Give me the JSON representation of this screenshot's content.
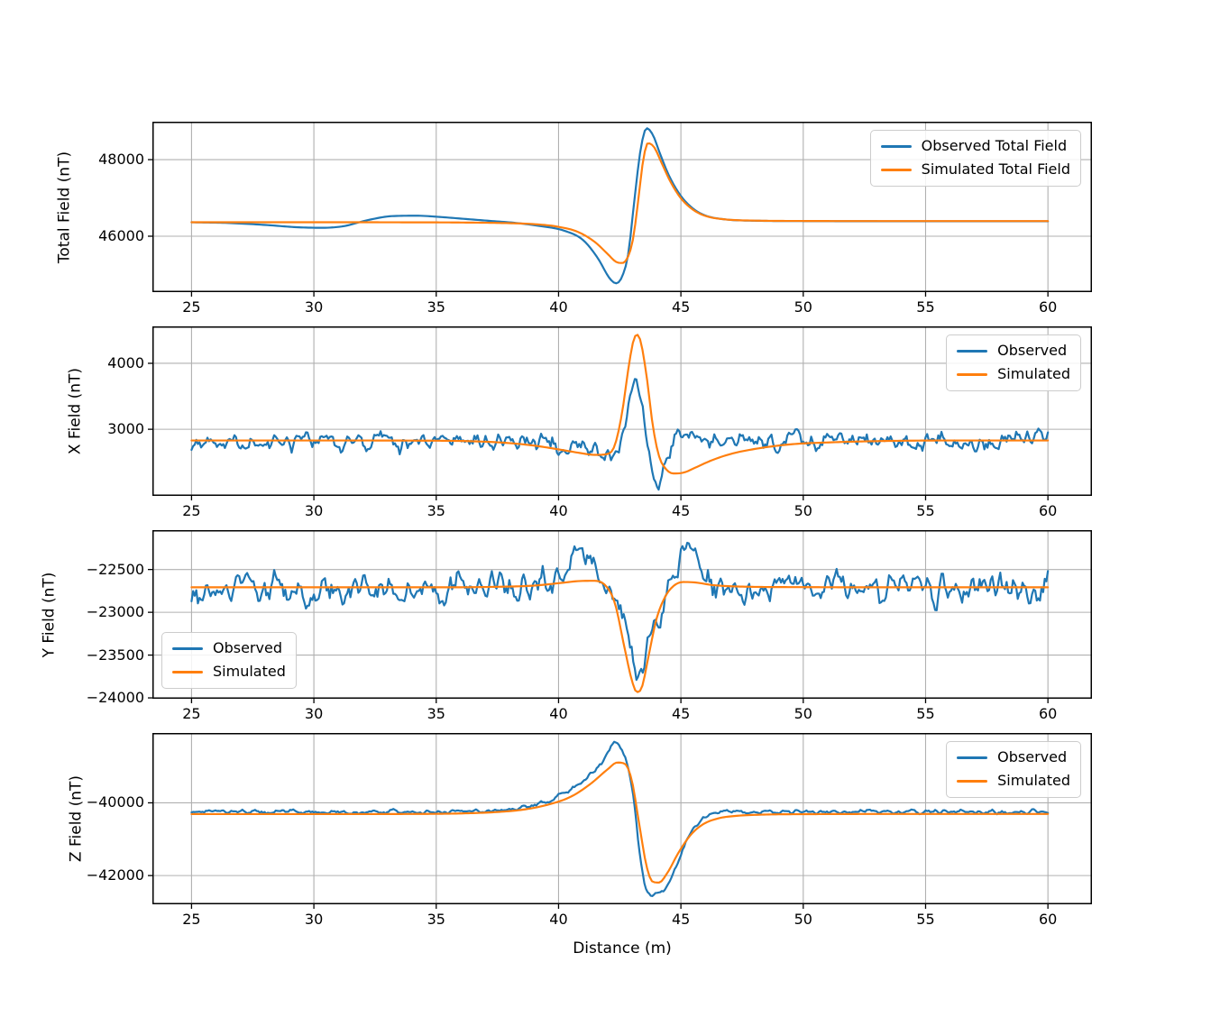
{
  "figure": {
    "xlabel": "Distance (m)",
    "background": "#ffffff",
    "text_color": "#000000",
    "grid_color": "#b0b0b0",
    "spine_color": "#000000",
    "observed_color": "#1f77b4",
    "simulated_color": "#ff7f0e"
  },
  "chart_data": [
    {
      "type": "line",
      "title": "",
      "ylabel": "Total Field (nT)",
      "xlabel": "",
      "x_ticks": [
        25,
        30,
        35,
        40,
        45,
        50,
        55,
        60
      ],
      "y_ticks": [
        46000,
        48000
      ],
      "xlim": [
        23.4,
        61.8
      ],
      "ylim": [
        44540,
        48990
      ],
      "x_data_range": [
        25,
        60
      ],
      "grid": true,
      "legend": {
        "position": "top-right",
        "entries": [
          "Observed Total Field",
          "Simulated Total Field"
        ]
      },
      "series": [
        {
          "name": "Observed Total Field",
          "color": "#1f77b4",
          "noise_amp": 0,
          "seed": 3,
          "keypoints": [
            [
              25,
              46365
            ],
            [
              26.5,
              46345
            ],
            [
              28,
              46295
            ],
            [
              29.3,
              46235
            ],
            [
              30.3,
              46220
            ],
            [
              31.2,
              46260
            ],
            [
              32.2,
              46420
            ],
            [
              33.2,
              46525
            ],
            [
              34.2,
              46535
            ],
            [
              35.2,
              46500
            ],
            [
              36.2,
              46450
            ],
            [
              37.2,
              46400
            ],
            [
              38.2,
              46350
            ],
            [
              39.2,
              46270
            ],
            [
              40.2,
              46150
            ],
            [
              41,
              45900
            ],
            [
              41.6,
              45430
            ],
            [
              42.1,
              44890
            ],
            [
              42.35,
              44770
            ],
            [
              42.6,
              44950
            ],
            [
              42.85,
              45550
            ],
            [
              43.1,
              46950
            ],
            [
              43.35,
              48250
            ],
            [
              43.6,
              48820
            ],
            [
              43.85,
              48650
            ],
            [
              44.15,
              48150
            ],
            [
              44.5,
              47600
            ],
            [
              45,
              47050
            ],
            [
              45.5,
              46720
            ],
            [
              46,
              46540
            ],
            [
              46.8,
              46440
            ],
            [
              48,
              46405
            ],
            [
              50,
              46395
            ],
            [
              54,
              46390
            ],
            [
              60,
              46390
            ]
          ]
        },
        {
          "name": "Simulated Total Field",
          "color": "#ff7f0e",
          "noise_amp": 0,
          "seed": 4,
          "keypoints": [
            [
              25,
              46365
            ],
            [
              28,
              46365
            ],
            [
              31,
              46365
            ],
            [
              34,
              46362
            ],
            [
              36,
              46358
            ],
            [
              38,
              46340
            ],
            [
              39,
              46315
            ],
            [
              40,
              46245
            ],
            [
              40.8,
              46110
            ],
            [
              41.5,
              45840
            ],
            [
              42,
              45540
            ],
            [
              42.35,
              45330
            ],
            [
              42.6,
              45300
            ],
            [
              42.85,
              45480
            ],
            [
              43.05,
              45950
            ],
            [
              43.25,
              46900
            ],
            [
              43.45,
              47950
            ],
            [
              43.65,
              48430
            ],
            [
              43.9,
              48330
            ],
            [
              44.2,
              47930
            ],
            [
              44.55,
              47450
            ],
            [
              45,
              46990
            ],
            [
              45.5,
              46690
            ],
            [
              46,
              46530
            ],
            [
              46.8,
              46440
            ],
            [
              48,
              46408
            ],
            [
              50,
              46398
            ],
            [
              54,
              46395
            ],
            [
              60,
              46395
            ]
          ]
        }
      ]
    },
    {
      "type": "line",
      "title": "",
      "ylabel": "X Field (nT)",
      "xlabel": "",
      "x_ticks": [
        25,
        30,
        35,
        40,
        45,
        50,
        55,
        60
      ],
      "y_ticks": [
        3000,
        4000
      ],
      "xlim": [
        23.4,
        61.8
      ],
      "ylim": [
        1990,
        4560
      ],
      "x_data_range": [
        25,
        60
      ],
      "grid": true,
      "legend": {
        "position": "top-right",
        "entries": [
          "Observed",
          "Simulated"
        ]
      },
      "series": [
        {
          "name": "Observed",
          "color": "#1f77b4",
          "noise_amp": 125,
          "seed": 7,
          "keypoints": [
            [
              25,
              2820
            ],
            [
              30,
              2820
            ],
            [
              36,
              2818
            ],
            [
              38,
              2808
            ],
            [
              39.5,
              2778
            ],
            [
              40.5,
              2720
            ],
            [
              41.3,
              2652
            ],
            [
              41.9,
              2612
            ],
            [
              42.3,
              2685
            ],
            [
              42.7,
              3005
            ],
            [
              43,
              3640
            ],
            [
              43.15,
              3728
            ],
            [
              43.35,
              3450
            ],
            [
              43.6,
              2905
            ],
            [
              43.85,
              2255
            ],
            [
              44.05,
              2152
            ],
            [
              44.3,
              2400
            ],
            [
              44.7,
              2800
            ],
            [
              45.1,
              2948
            ],
            [
              45.6,
              2852
            ],
            [
              46.5,
              2822
            ],
            [
              50,
              2820
            ],
            [
              55,
              2820
            ],
            [
              60,
              2820
            ]
          ]
        },
        {
          "name": "Simulated",
          "color": "#ff7f0e",
          "noise_amp": 0,
          "seed": 8,
          "keypoints": [
            [
              25,
              2830
            ],
            [
              30,
              2830
            ],
            [
              34,
              2828
            ],
            [
              36.5,
              2818
            ],
            [
              38,
              2790
            ],
            [
              39,
              2752
            ],
            [
              40,
              2695
            ],
            [
              40.8,
              2645
            ],
            [
              41.5,
              2612
            ],
            [
              42,
              2625
            ],
            [
              42.3,
              2760
            ],
            [
              42.6,
              3260
            ],
            [
              42.85,
              3910
            ],
            [
              43.05,
              4330
            ],
            [
              43.2,
              4435
            ],
            [
              43.35,
              4340
            ],
            [
              43.6,
              3800
            ],
            [
              43.85,
              3060
            ],
            [
              44.1,
              2600
            ],
            [
              44.4,
              2392
            ],
            [
              44.7,
              2330
            ],
            [
              45.1,
              2342
            ],
            [
              45.6,
              2420
            ],
            [
              46.2,
              2520
            ],
            [
              47,
              2622
            ],
            [
              48,
              2700
            ],
            [
              49.5,
              2772
            ],
            [
              51,
              2800
            ],
            [
              53,
              2820
            ],
            [
              56,
              2830
            ],
            [
              60,
              2830
            ]
          ]
        }
      ]
    },
    {
      "type": "line",
      "title": "",
      "ylabel": "Y Field (nT)",
      "xlabel": "",
      "x_ticks": [
        25,
        30,
        35,
        40,
        45,
        50,
        55,
        60
      ],
      "y_ticks": [
        -24000,
        -23500,
        -23000,
        -22500
      ],
      "xlim": [
        23.4,
        61.8
      ],
      "ylim": [
        -24010,
        -22040
      ],
      "x_data_range": [
        25,
        60
      ],
      "grid": true,
      "legend": {
        "position": "bottom-left",
        "entries": [
          "Observed",
          "Simulated"
        ]
      },
      "series": [
        {
          "name": "Observed",
          "color": "#1f77b4",
          "noise_amp": 150,
          "seed": 11,
          "keypoints": [
            [
              25,
              -22720
            ],
            [
              30,
              -22720
            ],
            [
              36,
              -22718
            ],
            [
              38.5,
              -22700
            ],
            [
              39.5,
              -22642
            ],
            [
              40.3,
              -22482
            ],
            [
              40.9,
              -22302
            ],
            [
              41.3,
              -22352
            ],
            [
              41.8,
              -22552
            ],
            [
              42.3,
              -22852
            ],
            [
              42.8,
              -23252
            ],
            [
              43.3,
              -23682
            ],
            [
              43.7,
              -23452
            ],
            [
              44.2,
              -22952
            ],
            [
              44.7,
              -22552
            ],
            [
              45.2,
              -22352
            ],
            [
              45.6,
              -22402
            ],
            [
              46.1,
              -22652
            ],
            [
              46.6,
              -22742
            ],
            [
              48,
              -22722
            ],
            [
              52,
              -22720
            ],
            [
              56,
              -22720
            ],
            [
              60,
              -22720
            ]
          ]
        },
        {
          "name": "Simulated",
          "color": "#ff7f0e",
          "noise_amp": 0,
          "seed": 12,
          "keypoints": [
            [
              25,
              -22708
            ],
            [
              30,
              -22708
            ],
            [
              35,
              -22708
            ],
            [
              37.5,
              -22702
            ],
            [
              39,
              -22688
            ],
            [
              40,
              -22660
            ],
            [
              40.8,
              -22636
            ],
            [
              41.4,
              -22632
            ],
            [
              41.9,
              -22682
            ],
            [
              42.3,
              -22892
            ],
            [
              42.7,
              -23420
            ],
            [
              43,
              -23800
            ],
            [
              43.2,
              -23932
            ],
            [
              43.4,
              -23880
            ],
            [
              43.7,
              -23480
            ],
            [
              44,
              -23080
            ],
            [
              44.35,
              -22822
            ],
            [
              44.7,
              -22692
            ],
            [
              45.1,
              -22646
            ],
            [
              45.6,
              -22652
            ],
            [
              46.3,
              -22682
            ],
            [
              47.5,
              -22700
            ],
            [
              50,
              -22706
            ],
            [
              55,
              -22708
            ],
            [
              60,
              -22708
            ]
          ]
        }
      ]
    },
    {
      "type": "line",
      "title": "",
      "ylabel": "Z Field (nT)",
      "xlabel": "Distance (m)",
      "x_ticks": [
        25,
        30,
        35,
        40,
        45,
        50,
        55,
        60
      ],
      "y_ticks": [
        -42000,
        -40000
      ],
      "xlim": [
        23.4,
        61.8
      ],
      "ylim": [
        -42790,
        -38080
      ],
      "x_data_range": [
        25,
        60
      ],
      "grid": true,
      "legend": {
        "position": "top-right",
        "entries": [
          "Observed",
          "Simulated"
        ]
      },
      "series": [
        {
          "name": "Observed",
          "color": "#1f77b4",
          "noise_amp": 52,
          "seed": 13,
          "keypoints": [
            [
              25,
              -40252
            ],
            [
              30,
              -40250
            ],
            [
              34,
              -40250
            ],
            [
              36,
              -40242
            ],
            [
              37.5,
              -40202
            ],
            [
              38.5,
              -40122
            ],
            [
              39.5,
              -39952
            ],
            [
              40.5,
              -39652
            ],
            [
              41.2,
              -39282
            ],
            [
              41.9,
              -38752
            ],
            [
              42.25,
              -38332
            ],
            [
              42.5,
              -38442
            ],
            [
              42.8,
              -38902
            ],
            [
              43.05,
              -39802
            ],
            [
              43.3,
              -41302
            ],
            [
              43.55,
              -42302
            ],
            [
              43.8,
              -42522
            ],
            [
              44.1,
              -42482
            ],
            [
              44.45,
              -42252
            ],
            [
              44.8,
              -41752
            ],
            [
              45.2,
              -41102
            ],
            [
              45.6,
              -40642
            ],
            [
              46.1,
              -40382
            ],
            [
              46.6,
              -40282
            ],
            [
              47.5,
              -40255
            ],
            [
              50,
              -40250
            ],
            [
              55,
              -40250
            ],
            [
              60,
              -40250
            ]
          ]
        },
        {
          "name": "Simulated",
          "color": "#ff7f0e",
          "noise_amp": 0,
          "seed": 14,
          "keypoints": [
            [
              25,
              -40310
            ],
            [
              30,
              -40310
            ],
            [
              34,
              -40306
            ],
            [
              36,
              -40292
            ],
            [
              37.5,
              -40252
            ],
            [
              38.5,
              -40192
            ],
            [
              39.5,
              -40062
            ],
            [
              40.5,
              -39832
            ],
            [
              41.3,
              -39482
            ],
            [
              42,
              -39082
            ],
            [
              42.4,
              -38892
            ],
            [
              42.7,
              -38922
            ],
            [
              43,
              -39402
            ],
            [
              43.3,
              -40602
            ],
            [
              43.6,
              -41752
            ],
            [
              43.85,
              -42172
            ],
            [
              44.1,
              -42192
            ],
            [
              44.45,
              -41922
            ],
            [
              44.9,
              -41372
            ],
            [
              45.4,
              -40882
            ],
            [
              45.9,
              -40592
            ],
            [
              46.5,
              -40432
            ],
            [
              47.2,
              -40362
            ],
            [
              48.5,
              -40322
            ],
            [
              50,
              -40312
            ],
            [
              55,
              -40306
            ],
            [
              60,
              -40306
            ]
          ]
        }
      ]
    }
  ]
}
